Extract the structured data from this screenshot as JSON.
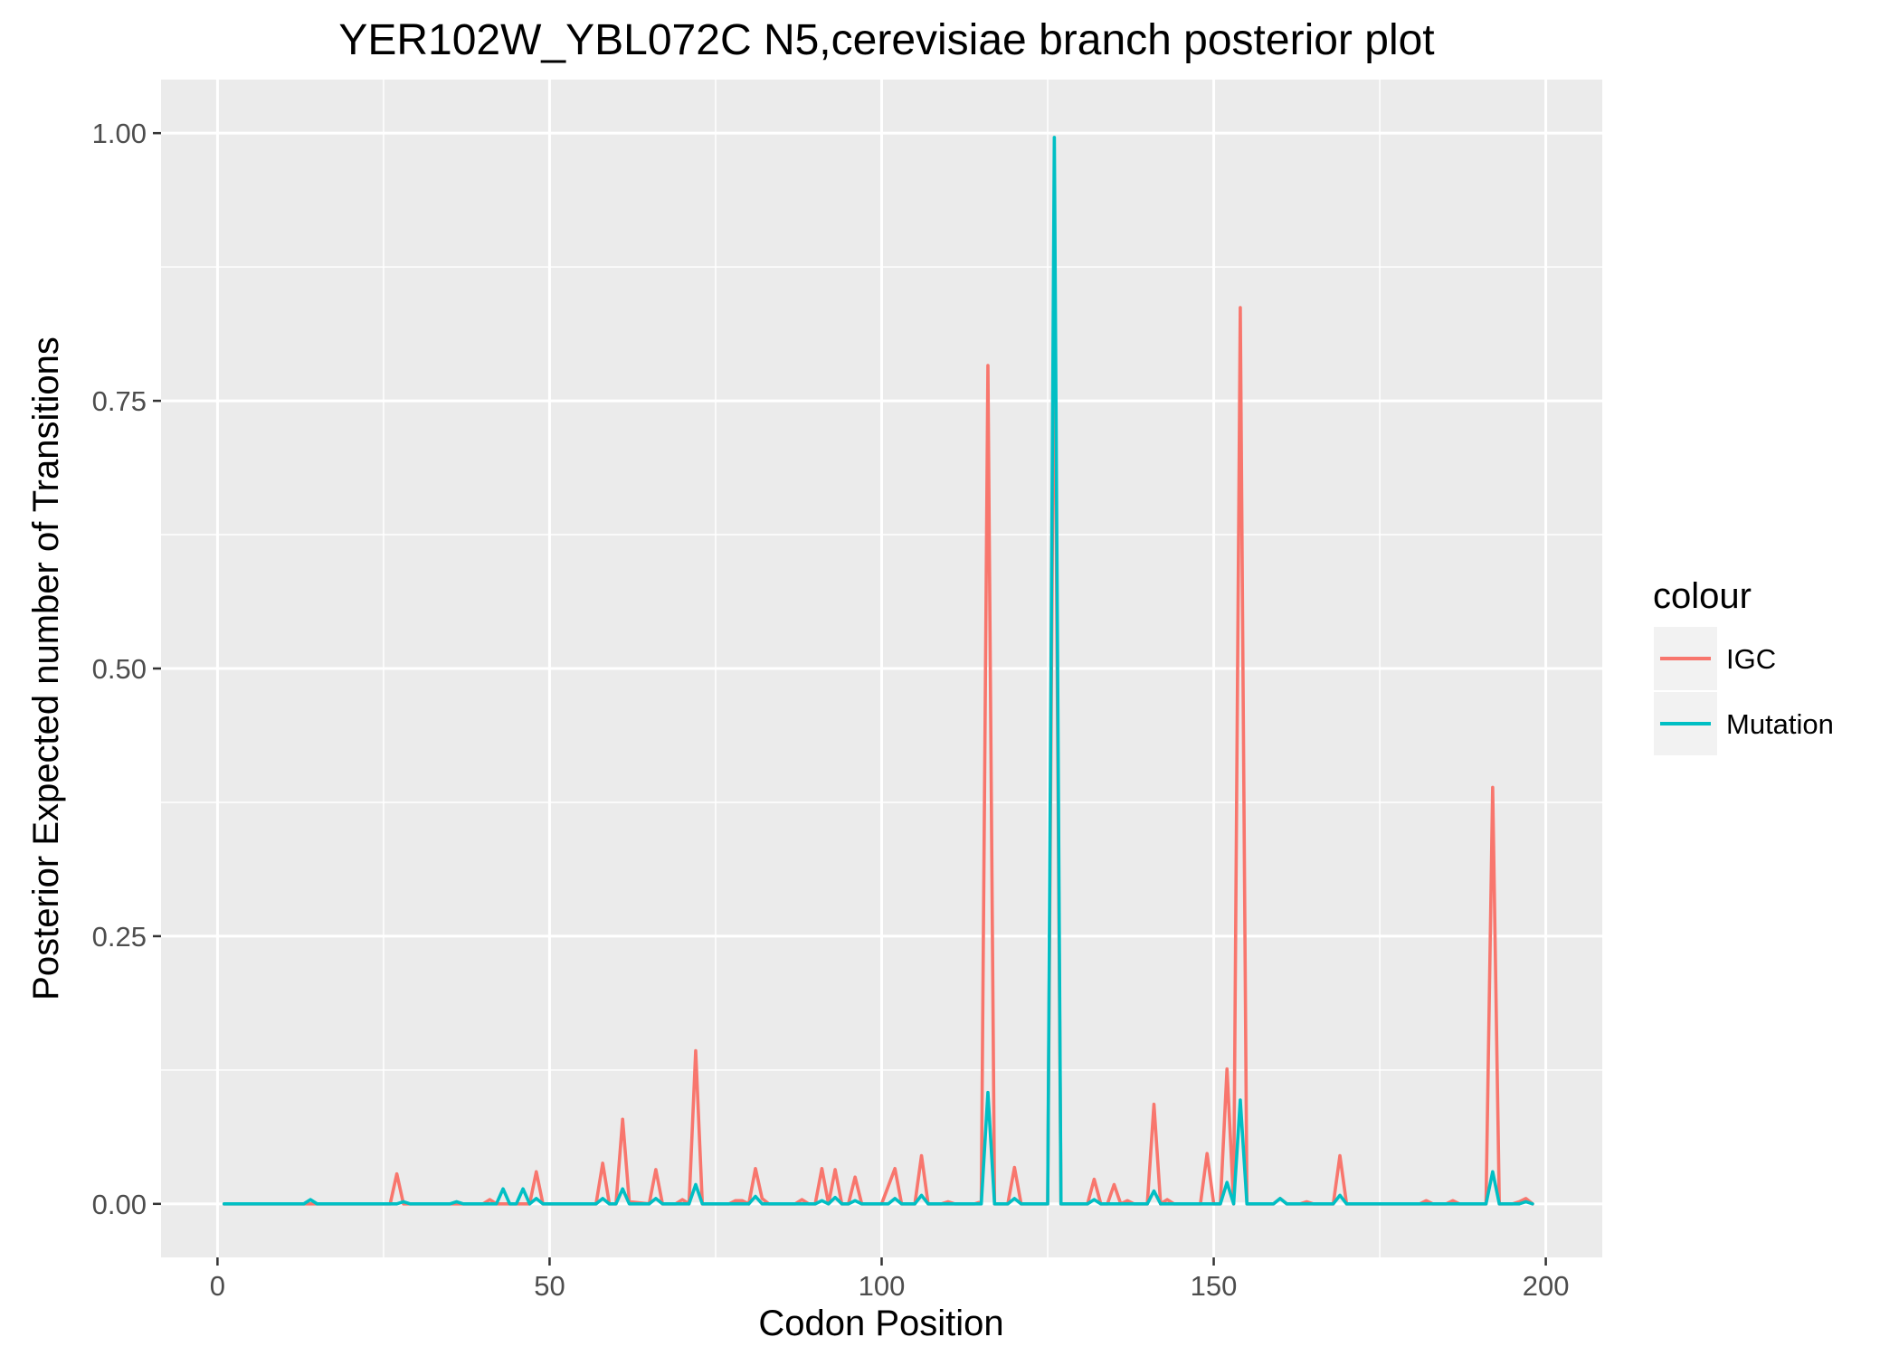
{
  "chart_data": {
    "type": "line",
    "title": "YER102W_YBL072C N5,cerevisiae branch posterior plot",
    "xlabel": "Codon Position",
    "ylabel": "Posterior Expected number of Transitions",
    "xlim": [
      -8.5,
      208.5
    ],
    "ylim": [
      -0.05,
      1.05
    ],
    "x_ticks": [
      0,
      50,
      100,
      150,
      200
    ],
    "x_tick_labels": [
      "0",
      "50",
      "100",
      "150",
      "200"
    ],
    "y_ticks": [
      0,
      0.25,
      0.5,
      0.75,
      1.0
    ],
    "y_tick_labels": [
      "0.00",
      "0.25",
      "0.50",
      "0.75",
      "1.00"
    ],
    "grid": true,
    "legend": {
      "title": "colour",
      "placement": "right"
    },
    "series": [
      {
        "name": "IGC",
        "color": "#f8766d",
        "points": [
          [
            1,
            0
          ],
          [
            26,
            0
          ],
          [
            27,
            0.028
          ],
          [
            28,
            0
          ],
          [
            40,
            0
          ],
          [
            41,
            0.004
          ],
          [
            42,
            0
          ],
          [
            47,
            0
          ],
          [
            48,
            0.03
          ],
          [
            49,
            0
          ],
          [
            57,
            0
          ],
          [
            58,
            0.038
          ],
          [
            59,
            0
          ],
          [
            60,
            0
          ],
          [
            61,
            0.079
          ],
          [
            62,
            0.002
          ],
          [
            65,
            0
          ],
          [
            66,
            0.032
          ],
          [
            67,
            0
          ],
          [
            69,
            0
          ],
          [
            70,
            0.004
          ],
          [
            71,
            0
          ],
          [
            72,
            0.143
          ],
          [
            73,
            0
          ],
          [
            77,
            0
          ],
          [
            78,
            0.003
          ],
          [
            79,
            0.003
          ],
          [
            80,
            0
          ],
          [
            81,
            0.033
          ],
          [
            82,
            0.005
          ],
          [
            83,
            0
          ],
          [
            87,
            0
          ],
          [
            88,
            0.004
          ],
          [
            89,
            0
          ],
          [
            90,
            0
          ],
          [
            91,
            0.033
          ],
          [
            92,
            0
          ],
          [
            93,
            0.032
          ],
          [
            94,
            0
          ],
          [
            95,
            0
          ],
          [
            96,
            0.025
          ],
          [
            97,
            0
          ],
          [
            100,
            0
          ],
          [
            102,
            0.033
          ],
          [
            103,
            0
          ],
          [
            105,
            0
          ],
          [
            106,
            0.045
          ],
          [
            107,
            0
          ],
          [
            109,
            0
          ],
          [
            110,
            0.002
          ],
          [
            111,
            0
          ],
          [
            114,
            0
          ],
          [
            115,
            0.002
          ],
          [
            116,
            0.783
          ],
          [
            117,
            0
          ],
          [
            119,
            0
          ],
          [
            120,
            0.034
          ],
          [
            121,
            0
          ],
          [
            125,
            0
          ],
          [
            126,
            0.875
          ],
          [
            127,
            0
          ],
          [
            131,
            0
          ],
          [
            132,
            0.023
          ],
          [
            133,
            0
          ],
          [
            134,
            0
          ],
          [
            135,
            0.018
          ],
          [
            136,
            0
          ],
          [
            137,
            0.003
          ],
          [
            138,
            0
          ],
          [
            140,
            0
          ],
          [
            141,
            0.093
          ],
          [
            142,
            0
          ],
          [
            143,
            0.004
          ],
          [
            144,
            0
          ],
          [
            148,
            0
          ],
          [
            149,
            0.047
          ],
          [
            150,
            0
          ],
          [
            151,
            0
          ],
          [
            152,
            0.126
          ],
          [
            153,
            0
          ],
          [
            154,
            0.837
          ],
          [
            155,
            0
          ],
          [
            159,
            0
          ],
          [
            160,
            0.005
          ],
          [
            161,
            0
          ],
          [
            163,
            0
          ],
          [
            164,
            0.002
          ],
          [
            165,
            0
          ],
          [
            168,
            0
          ],
          [
            169,
            0.045
          ],
          [
            170,
            0
          ],
          [
            181,
            0
          ],
          [
            182,
            0.003
          ],
          [
            183,
            0
          ],
          [
            185,
            0
          ],
          [
            186,
            0.003
          ],
          [
            187,
            0
          ],
          [
            191,
            0
          ],
          [
            192,
            0.389
          ],
          [
            193,
            0
          ],
          [
            195,
            0
          ],
          [
            196,
            0.002
          ],
          [
            197,
            0.005
          ],
          [
            198,
            0
          ]
        ]
      },
      {
        "name": "Mutation",
        "color": "#00bfc4",
        "points": [
          [
            1,
            0
          ],
          [
            13,
            0
          ],
          [
            14,
            0.004
          ],
          [
            15,
            0
          ],
          [
            27,
            0
          ],
          [
            28,
            0.002
          ],
          [
            29,
            0
          ],
          [
            35,
            0
          ],
          [
            36,
            0.002
          ],
          [
            37,
            0
          ],
          [
            42,
            0
          ],
          [
            43,
            0.014
          ],
          [
            44,
            0
          ],
          [
            45,
            0
          ],
          [
            46,
            0.014
          ],
          [
            47,
            0
          ],
          [
            48,
            0.005
          ],
          [
            49,
            0
          ],
          [
            57,
            0
          ],
          [
            58,
            0.005
          ],
          [
            59,
            0
          ],
          [
            60,
            0
          ],
          [
            61,
            0.014
          ],
          [
            62,
            0
          ],
          [
            65,
            0
          ],
          [
            66,
            0.005
          ],
          [
            67,
            0
          ],
          [
            71,
            0
          ],
          [
            72,
            0.018
          ],
          [
            73,
            0
          ],
          [
            80,
            0
          ],
          [
            81,
            0.007
          ],
          [
            82,
            0
          ],
          [
            90,
            0
          ],
          [
            91,
            0.003
          ],
          [
            92,
            0
          ],
          [
            93,
            0.006
          ],
          [
            94,
            0
          ],
          [
            95,
            0
          ],
          [
            96,
            0.003
          ],
          [
            97,
            0
          ],
          [
            101,
            0
          ],
          [
            102,
            0.005
          ],
          [
            103,
            0
          ],
          [
            105,
            0
          ],
          [
            106,
            0.008
          ],
          [
            107,
            0
          ],
          [
            115,
            0
          ],
          [
            116,
            0.104
          ],
          [
            117,
            0
          ],
          [
            119,
            0
          ],
          [
            120,
            0.005
          ],
          [
            121,
            0
          ],
          [
            125,
            0
          ],
          [
            126,
            0.996
          ],
          [
            127,
            0
          ],
          [
            131,
            0
          ],
          [
            132,
            0.004
          ],
          [
            133,
            0
          ],
          [
            140,
            0
          ],
          [
            141,
            0.012
          ],
          [
            142,
            0
          ],
          [
            151,
            0
          ],
          [
            152,
            0.02
          ],
          [
            153,
            0
          ],
          [
            154,
            0.097
          ],
          [
            155,
            0
          ],
          [
            159,
            0
          ],
          [
            160,
            0.005
          ],
          [
            161,
            0
          ],
          [
            168,
            0
          ],
          [
            169,
            0.008
          ],
          [
            170,
            0
          ],
          [
            191,
            0
          ],
          [
            192,
            0.03
          ],
          [
            193,
            0
          ],
          [
            196,
            0
          ],
          [
            197,
            0.002
          ],
          [
            198,
            0
          ]
        ]
      }
    ]
  }
}
